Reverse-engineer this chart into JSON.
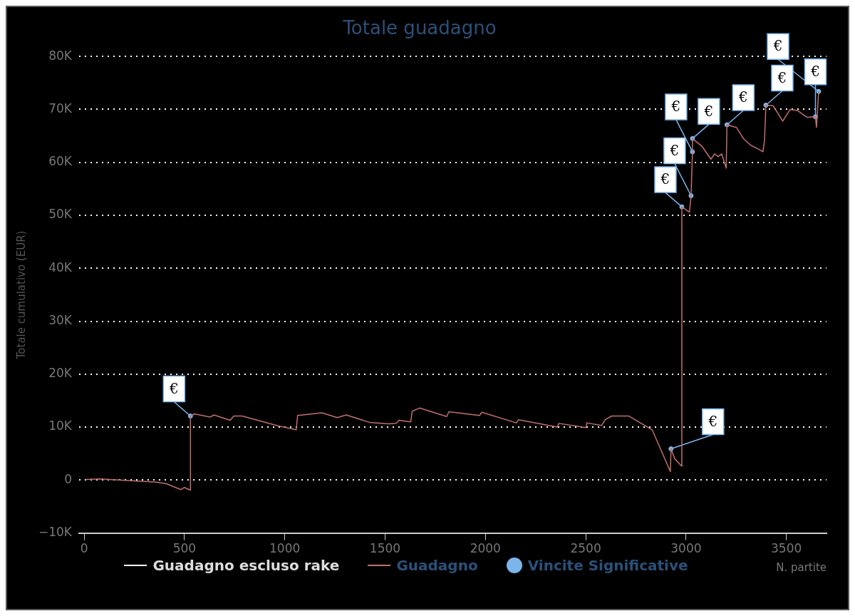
{
  "chart_data": {
    "type": "line",
    "title": "Totale guadagno",
    "xlabel": "N. partite",
    "ylabel": "Totale cumulativo (EUR)",
    "xlim": [
      -25,
      3700
    ],
    "xticks": [
      0,
      500,
      1000,
      1500,
      2000,
      2500,
      3000,
      3500
    ],
    "ylim": [
      -10000,
      80000
    ],
    "yticks": [
      {
        "value": -10000,
        "label": "−10K"
      },
      {
        "value": 0,
        "label": "0"
      },
      {
        "value": 10000,
        "label": "10K"
      },
      {
        "value": 20000,
        "label": "20K"
      },
      {
        "value": 30000,
        "label": "30K"
      },
      {
        "value": 40000,
        "label": "40K"
      },
      {
        "value": 50000,
        "label": "50K"
      },
      {
        "value": 60000,
        "label": "60K"
      },
      {
        "value": 70000,
        "label": "70K"
      },
      {
        "value": 80000,
        "label": "80K"
      }
    ],
    "grid": "y",
    "legend": "bottom",
    "series": [
      {
        "name": "Guadagno escluso rake",
        "color": "#ffffff"
      },
      {
        "name": "Guadagno",
        "color": "#c0706c",
        "x": [
          7,
          80,
          362,
          410,
          483,
          500,
          530,
          530,
          549,
          629,
          647,
          728,
          746,
          787,
          969,
          1057,
          1064,
          1185,
          1262,
          1306,
          1423,
          1518,
          1555,
          1569,
          1628,
          1635,
          1672,
          1807,
          1818,
          1971,
          1982,
          2154,
          2165,
          2359,
          2366,
          2502,
          2505,
          2579,
          2597,
          2630,
          2714,
          2831,
          2922,
          2925,
          2944,
          2979,
          2979,
          3017,
          3025,
          3032,
          3032,
          3080,
          3124,
          3142,
          3160,
          3178,
          3200,
          3204,
          3251,
          3288,
          3324,
          3361,
          3383,
          3391,
          3398,
          3434,
          3482,
          3519,
          3555,
          3603,
          3645,
          3650,
          3661
        ],
        "values": [
          100,
          200,
          -400,
          -700,
          -1800,
          -1400,
          -1900,
          12100,
          12500,
          11900,
          12300,
          11300,
          12100,
          12100,
          10200,
          9500,
          12200,
          12700,
          11800,
          12300,
          10900,
          10600,
          10700,
          11300,
          11000,
          13000,
          13600,
          12000,
          12900,
          12200,
          12800,
          10800,
          11400,
          10000,
          10700,
          9900,
          10800,
          10300,
          11400,
          12100,
          12100,
          9500,
          1600,
          5900,
          4000,
          2600,
          51600,
          50600,
          53700,
          62000,
          64500,
          63000,
          60600,
          61600,
          61100,
          61600,
          58900,
          67100,
          66600,
          64400,
          63200,
          62500,
          62000,
          64100,
          70800,
          70700,
          67800,
          70000,
          69800,
          68500,
          68600,
          66600,
          73400
        ]
      },
      {
        "name": "Vincite Significative",
        "type": "scatter",
        "color": "#7cb5ec",
        "x": [
          530,
          2925,
          2979,
          3025,
          3032,
          3032,
          3204,
          3398,
          3645,
          3661
        ],
        "values": [
          12100,
          5900,
          51600,
          53700,
          62000,
          64500,
          67100,
          70800,
          68600,
          73400
        ]
      }
    ],
    "annotations": [
      {
        "text": "€",
        "x": 530,
        "y": 12100
      },
      {
        "text": "€",
        "x": 2925,
        "y": 5900
      },
      {
        "text": "€",
        "x": 2979,
        "y": 51600
      },
      {
        "text": "€",
        "x": 3025,
        "y": 53700
      },
      {
        "text": "€",
        "x": 3032,
        "y": 62000
      },
      {
        "text": "€",
        "x": 3032,
        "y": 64500
      },
      {
        "text": "€",
        "x": 3204,
        "y": 67100
      },
      {
        "text": "€",
        "x": 3398,
        "y": 70800
      },
      {
        "text": "€",
        "x": 3645,
        "y": 68600
      },
      {
        "text": "€",
        "x": 3661,
        "y": 73400
      }
    ]
  }
}
